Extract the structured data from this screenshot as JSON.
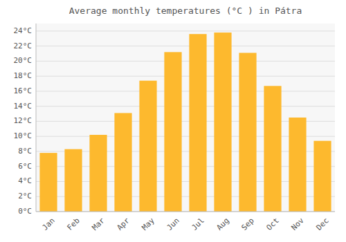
{
  "chart_data": {
    "type": "bar",
    "title": "Average monthly temperatures (°C ) in Pátra",
    "categories": [
      "Jan",
      "Feb",
      "Mar",
      "Apr",
      "May",
      "Jun",
      "Jul",
      "Aug",
      "Sep",
      "Oct",
      "Nov",
      "Dec"
    ],
    "values": [
      7.8,
      8.3,
      10.2,
      13.1,
      17.4,
      21.2,
      23.6,
      23.8,
      21.1,
      16.7,
      12.5,
      9.4
    ],
    "color": "#FDB92E",
    "ylim": [
      0,
      25
    ],
    "yticks": [
      {
        "value": 0,
        "label": "0°C"
      },
      {
        "value": 2,
        "label": "2°C"
      },
      {
        "value": 4,
        "label": "4°C"
      },
      {
        "value": 6,
        "label": "6°C"
      },
      {
        "value": 8,
        "label": "8°C"
      },
      {
        "value": 10,
        "label": "10°C"
      },
      {
        "value": 12,
        "label": "12°C"
      },
      {
        "value": 14,
        "label": "14°C"
      },
      {
        "value": 16,
        "label": "16°C"
      },
      {
        "value": 18,
        "label": "18°C"
      },
      {
        "value": 20,
        "label": "20°C"
      },
      {
        "value": 22,
        "label": "22°C"
      },
      {
        "value": 24,
        "label": "24°C"
      }
    ],
    "grid": true
  }
}
